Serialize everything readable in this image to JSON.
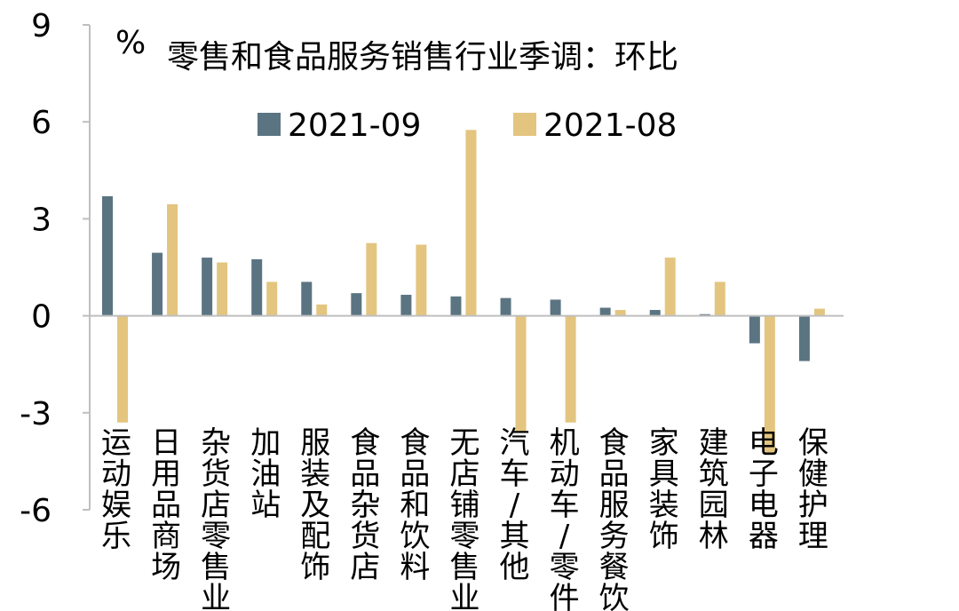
{
  "chart_data": {
    "type": "bar",
    "title": "零售和食品服务销售行业季调：环比",
    "unit_label": "%",
    "ylim": [
      -6,
      9
    ],
    "yticks": [
      "9",
      "6",
      "3",
      "0",
      "-3",
      "-6"
    ],
    "ytick_values": [
      9,
      6,
      3,
      0,
      -3,
      -6
    ],
    "legend_position": "top",
    "categories": [
      "运动娱乐",
      "日用品商场",
      "杂货店零售业",
      "加油站",
      "服装及配饰",
      "食品杂货店",
      "食品和饮料",
      "无店铺零售业",
      "汽车/其他",
      "机动车/零件",
      "食品服务餐饮",
      "家具装饰",
      "建筑园林",
      "电子电器",
      "保健护理"
    ],
    "series": [
      {
        "name": "2021-09",
        "color": "#5b7482",
        "values": [
          3.7,
          1.95,
          1.8,
          1.75,
          1.05,
          0.7,
          0.65,
          0.6,
          0.55,
          0.5,
          0.25,
          0.18,
          0.05,
          -0.85,
          -1.4
        ]
      },
      {
        "name": "2021-08",
        "color": "#e3c57f",
        "values": [
          -3.3,
          3.45,
          1.65,
          1.05,
          0.35,
          2.25,
          2.2,
          5.75,
          -3.6,
          -3.3,
          0.18,
          1.8,
          1.05,
          -4.3,
          0.22
        ]
      }
    ]
  }
}
